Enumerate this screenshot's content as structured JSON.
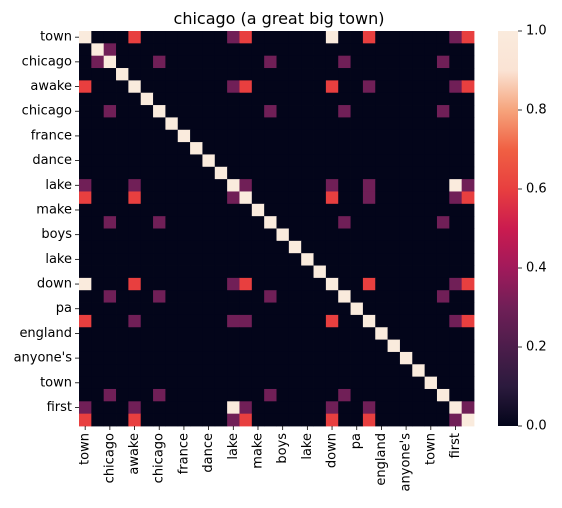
{
  "chart_data": {
    "type": "heatmap",
    "title": "chicago (a great big town)",
    "labels": [
      "town",
      "chicago",
      "awake",
      "chicago",
      "france",
      "dance",
      "lake",
      "make",
      "boys",
      "lake",
      "down",
      "pa",
      "england",
      "anyone's",
      "town",
      "first"
    ],
    "x_tick_labels": [
      "town",
      "chicago",
      "awake",
      "chicago",
      "france",
      "dance",
      "lake",
      "make",
      "boys",
      "lake",
      "down",
      "pa",
      "england",
      "anyone's",
      "town",
      "first"
    ],
    "y_tick_labels": [
      "town",
      "chicago",
      "awake",
      "chicago",
      "france",
      "dance",
      "lake",
      "make",
      "boys",
      "lake",
      "down",
      "pa",
      "england",
      "anyone's",
      "town",
      "first"
    ],
    "colorbar": {
      "min": 0.0,
      "max": 1.0,
      "ticks": [
        "0.0",
        "0.2",
        "0.4",
        "0.6",
        "0.8",
        "1.0"
      ],
      "colormap": "rocket",
      "stops": [
        "#03051a",
        "#2b1a3d",
        "#4c1d4b",
        "#701f57",
        "#a11a5b",
        "#cb1b4f",
        "#e83f3f",
        "#f06043",
        "#f6a47c",
        "#fae3d4",
        "#faebdd"
      ]
    },
    "rows": 32,
    "cols": 32,
    "values": [
      [
        1,
        0,
        0,
        0,
        0.6,
        0,
        0,
        0,
        0,
        0,
        0,
        0,
        0.3,
        0.6,
        0,
        0,
        0,
        0,
        0,
        0,
        1,
        0,
        0,
        0.6,
        0,
        0,
        0,
        0,
        0,
        0,
        0.3,
        0.6
      ],
      [
        0,
        1,
        0.3,
        0,
        0,
        0,
        0,
        0,
        0,
        0,
        0,
        0,
        0,
        0,
        0,
        0,
        0,
        0,
        0,
        0,
        0,
        0,
        0,
        0,
        0,
        0,
        0,
        0,
        0,
        0,
        0,
        0
      ],
      [
        0,
        0.3,
        1,
        0,
        0,
        0,
        0.3,
        0,
        0,
        0,
        0,
        0,
        0,
        0,
        0,
        0.3,
        0,
        0,
        0,
        0,
        0,
        0.3,
        0,
        0,
        0,
        0,
        0,
        0,
        0,
        0.3,
        0,
        0
      ],
      [
        0,
        0,
        0,
        1,
        0,
        0,
        0,
        0,
        0,
        0,
        0,
        0,
        0,
        0,
        0,
        0,
        0,
        0,
        0,
        0,
        0,
        0,
        0,
        0,
        0,
        0,
        0,
        0,
        0,
        0,
        0,
        0
      ],
      [
        0.6,
        0,
        0,
        0,
        1,
        0,
        0,
        0,
        0,
        0,
        0,
        0,
        0.3,
        0.6,
        0,
        0,
        0,
        0,
        0,
        0,
        0.6,
        0,
        0,
        0.3,
        0,
        0,
        0,
        0,
        0,
        0,
        0.3,
        0.6
      ],
      [
        0,
        0,
        0,
        0,
        0,
        1,
        0,
        0,
        0,
        0,
        0,
        0,
        0,
        0,
        0,
        0,
        0,
        0,
        0,
        0,
        0,
        0,
        0,
        0,
        0,
        0,
        0,
        0,
        0,
        0,
        0,
        0
      ],
      [
        0,
        0,
        0.3,
        0,
        0,
        0,
        1,
        0,
        0,
        0,
        0,
        0,
        0,
        0,
        0,
        0.3,
        0,
        0,
        0,
        0,
        0,
        0.3,
        0,
        0,
        0,
        0,
        0,
        0,
        0,
        0.3,
        0,
        0
      ],
      [
        0,
        0,
        0,
        0,
        0,
        0,
        0,
        1,
        0,
        0,
        0,
        0,
        0,
        0,
        0,
        0,
        0,
        0,
        0,
        0,
        0,
        0,
        0,
        0,
        0,
        0,
        0,
        0,
        0,
        0,
        0,
        0
      ],
      [
        0,
        0,
        0,
        0,
        0,
        0,
        0,
        0,
        1,
        0,
        0,
        0,
        0,
        0,
        0,
        0,
        0,
        0,
        0,
        0,
        0,
        0,
        0,
        0,
        0,
        0,
        0,
        0,
        0,
        0,
        0,
        0
      ],
      [
        0,
        0,
        0,
        0,
        0,
        0,
        0,
        0,
        0,
        1,
        0,
        0,
        0,
        0,
        0,
        0,
        0,
        0,
        0,
        0,
        0,
        0,
        0,
        0,
        0,
        0,
        0,
        0,
        0,
        0,
        0,
        0
      ],
      [
        0,
        0,
        0,
        0,
        0,
        0,
        0,
        0,
        0,
        0,
        1,
        0,
        0,
        0,
        0,
        0,
        0,
        0,
        0,
        0,
        0,
        0,
        0,
        0,
        0,
        0,
        0,
        0,
        0,
        0,
        0,
        0
      ],
      [
        0,
        0,
        0,
        0,
        0,
        0,
        0,
        0,
        0,
        0,
        0,
        1,
        0,
        0,
        0,
        0,
        0,
        0,
        0,
        0,
        0,
        0,
        0,
        0,
        0,
        0,
        0,
        0,
        0,
        0,
        0,
        0
      ],
      [
        0.3,
        0,
        0,
        0,
        0.3,
        0,
        0,
        0,
        0,
        0,
        0,
        0,
        1,
        0.3,
        0,
        0,
        0,
        0,
        0,
        0,
        0.3,
        0,
        0,
        0.3,
        0,
        0,
        0,
        0,
        0,
        0,
        1,
        0.3
      ],
      [
        0.6,
        0,
        0,
        0,
        0.6,
        0,
        0,
        0,
        0,
        0,
        0,
        0,
        0.3,
        1,
        0,
        0,
        0,
        0,
        0,
        0,
        0.6,
        0,
        0,
        0.3,
        0,
        0,
        0,
        0,
        0,
        0,
        0.3,
        0.6
      ],
      [
        0,
        0,
        0,
        0,
        0,
        0,
        0,
        0,
        0,
        0,
        0,
        0,
        0,
        0,
        1,
        0,
        0,
        0,
        0,
        0,
        0,
        0,
        0,
        0,
        0,
        0,
        0,
        0,
        0,
        0,
        0,
        0
      ],
      [
        0,
        0,
        0.3,
        0,
        0,
        0,
        0.3,
        0,
        0,
        0,
        0,
        0,
        0,
        0,
        0,
        1,
        0,
        0,
        0,
        0,
        0,
        0.3,
        0,
        0,
        0,
        0,
        0,
        0,
        0,
        0.3,
        0,
        0
      ],
      [
        0,
        0,
        0,
        0,
        0,
        0,
        0,
        0,
        0,
        0,
        0,
        0,
        0,
        0,
        0,
        0,
        1,
        0,
        0,
        0,
        0,
        0,
        0,
        0,
        0,
        0,
        0,
        0,
        0,
        0,
        0,
        0
      ],
      [
        0,
        0,
        0,
        0,
        0,
        0,
        0,
        0,
        0,
        0,
        0,
        0,
        0,
        0,
        0,
        0,
        0,
        1,
        0,
        0,
        0,
        0,
        0,
        0,
        0,
        0,
        0,
        0,
        0,
        0,
        0,
        0
      ],
      [
        0,
        0,
        0,
        0,
        0,
        0,
        0,
        0,
        0,
        0,
        0,
        0,
        0,
        0,
        0,
        0,
        0,
        0,
        1,
        0,
        0,
        0,
        0,
        0,
        0,
        0,
        0,
        0,
        0,
        0,
        0,
        0
      ],
      [
        0,
        0,
        0,
        0,
        0,
        0,
        0,
        0,
        0,
        0,
        0,
        0,
        0,
        0,
        0,
        0,
        0,
        0,
        0,
        1,
        0,
        0,
        0,
        0,
        0,
        0,
        0,
        0,
        0,
        0,
        0,
        0
      ],
      [
        1,
        0,
        0,
        0,
        0.6,
        0,
        0,
        0,
        0,
        0,
        0,
        0,
        0.3,
        0.6,
        0,
        0,
        0,
        0,
        0,
        0,
        1,
        0,
        0,
        0.6,
        0,
        0,
        0,
        0,
        0,
        0,
        0.3,
        0.6
      ],
      [
        0,
        0,
        0.3,
        0,
        0,
        0,
        0.3,
        0,
        0,
        0,
        0,
        0,
        0,
        0,
        0,
        0.3,
        0,
        0,
        0,
        0,
        0,
        1,
        0,
        0,
        0,
        0,
        0,
        0,
        0,
        0.3,
        0,
        0
      ],
      [
        0,
        0,
        0,
        0,
        0,
        0,
        0,
        0,
        0,
        0,
        0,
        0,
        0,
        0,
        0,
        0,
        0,
        0,
        0,
        0,
        0,
        0,
        1,
        0,
        0,
        0,
        0,
        0,
        0,
        0,
        0,
        0
      ],
      [
        0.6,
        0,
        0,
        0,
        0.3,
        0,
        0,
        0,
        0,
        0,
        0,
        0,
        0.3,
        0.3,
        0,
        0,
        0,
        0,
        0,
        0,
        0.6,
        0,
        0,
        1,
        0,
        0,
        0,
        0,
        0,
        0,
        0.3,
        0.6
      ],
      [
        0,
        0,
        0,
        0,
        0,
        0,
        0,
        0,
        0,
        0,
        0,
        0,
        0,
        0,
        0,
        0,
        0,
        0,
        0,
        0,
        0,
        0,
        0,
        0,
        1,
        0,
        0,
        0,
        0,
        0,
        0,
        0
      ],
      [
        0,
        0,
        0,
        0,
        0,
        0,
        0,
        0,
        0,
        0,
        0,
        0,
        0,
        0,
        0,
        0,
        0,
        0,
        0,
        0,
        0,
        0,
        0,
        0,
        0,
        1,
        0,
        0,
        0,
        0,
        0,
        0
      ],
      [
        0,
        0,
        0,
        0,
        0,
        0,
        0,
        0,
        0,
        0,
        0,
        0,
        0,
        0,
        0,
        0,
        0,
        0,
        0,
        0,
        0,
        0,
        0,
        0,
        0,
        0,
        1,
        0,
        0,
        0,
        0,
        0
      ],
      [
        0,
        0,
        0,
        0,
        0,
        0,
        0,
        0,
        0,
        0,
        0,
        0,
        0,
        0,
        0,
        0,
        0,
        0,
        0,
        0,
        0,
        0,
        0,
        0,
        0,
        0,
        0,
        1,
        0,
        0,
        0,
        0
      ],
      [
        0,
        0,
        0,
        0,
        0,
        0,
        0,
        0,
        0,
        0,
        0,
        0,
        0,
        0,
        0,
        0,
        0,
        0,
        0,
        0,
        0,
        0,
        0,
        0,
        0,
        0,
        0,
        0,
        1,
        0,
        0,
        0
      ],
      [
        0,
        0,
        0.3,
        0,
        0,
        0,
        0.3,
        0,
        0,
        0,
        0,
        0,
        0,
        0,
        0,
        0.3,
        0,
        0,
        0,
        0,
        0,
        0.3,
        0,
        0,
        0,
        0,
        0,
        0,
        0,
        1,
        0,
        0
      ],
      [
        0.3,
        0,
        0,
        0,
        0.3,
        0,
        0,
        0,
        0,
        0,
        0,
        0,
        1,
        0.3,
        0,
        0,
        0,
        0,
        0,
        0,
        0.3,
        0,
        0,
        0.3,
        0,
        0,
        0,
        0,
        0,
        0,
        1,
        0.3
      ],
      [
        0.6,
        0,
        0,
        0,
        0.6,
        0,
        0,
        0,
        0,
        0,
        0,
        0,
        0.3,
        0.6,
        0,
        0,
        0,
        0,
        0,
        0,
        0.6,
        0,
        0,
        0.6,
        0,
        0,
        0,
        0,
        0,
        0,
        0.3,
        1
      ]
    ]
  }
}
